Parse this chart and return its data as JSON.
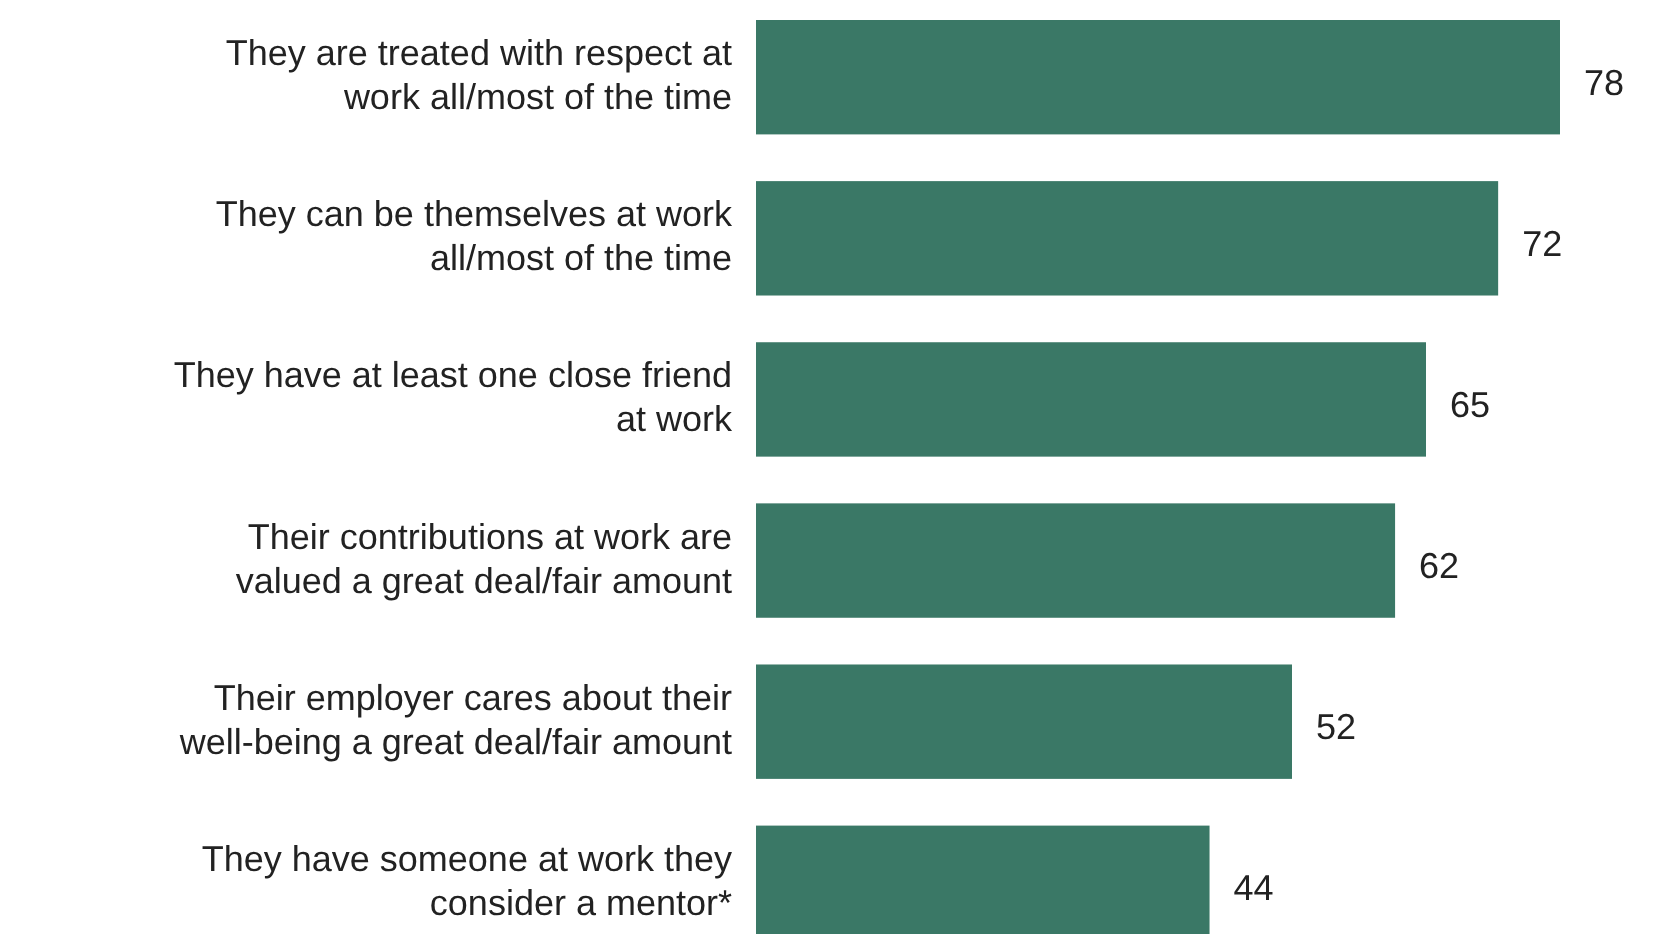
{
  "chart_data": {
    "type": "bar",
    "orientation": "horizontal",
    "data_labels": true,
    "color": "#3a7866",
    "categories": [
      "They are treated with respect at work all/most of the time",
      "They can be themselves at work all/most of the time",
      "They have at least one close friend at work",
      "Their contributions at work are valued a great deal/fair amount",
      "Their employer cares about their well-being a great deal/fair amount",
      "They have someone at work they consider a mentor*"
    ],
    "values": [
      78,
      72,
      65,
      62,
      52,
      44
    ]
  }
}
